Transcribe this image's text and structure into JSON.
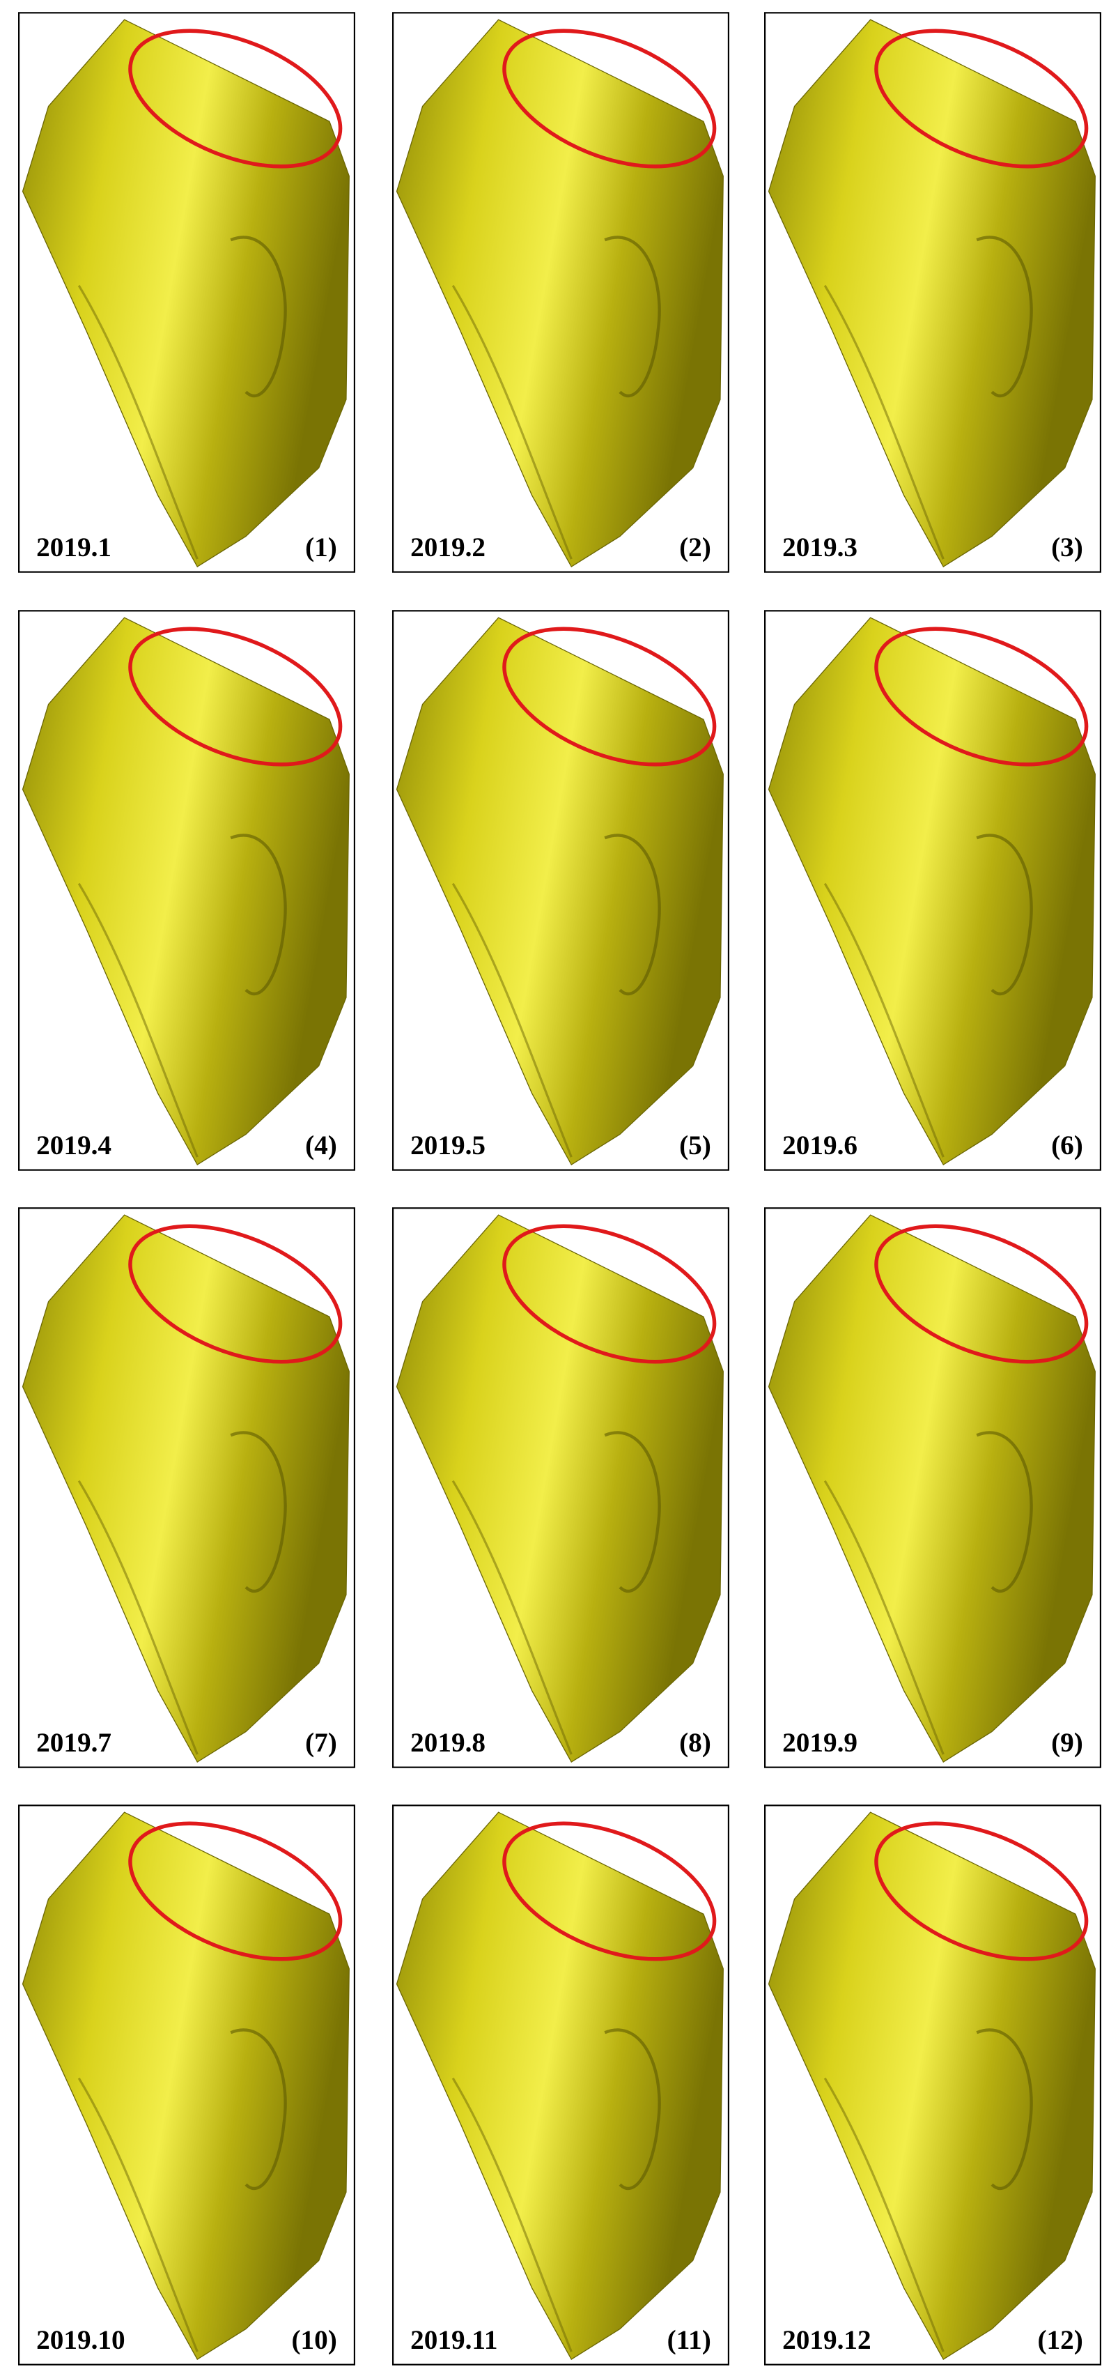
{
  "panels": [
    {
      "date": "2019.1",
      "label": "(1)"
    },
    {
      "date": "2019.2",
      "label": "(2)"
    },
    {
      "date": "2019.3",
      "label": "(3)"
    },
    {
      "date": "2019.4",
      "label": "(4)"
    },
    {
      "date": "2019.5",
      "label": "(5)"
    },
    {
      "date": "2019.6",
      "label": "(6)"
    },
    {
      "date": "2019.7",
      "label": "(7)"
    },
    {
      "date": "2019.8",
      "label": "(8)"
    },
    {
      "date": "2019.9",
      "label": "(9)"
    },
    {
      "date": "2019.10",
      "label": "(10)"
    },
    {
      "date": "2019.11",
      "label": "(11)"
    },
    {
      "date": "2019.12",
      "label": "(12)"
    }
  ]
}
